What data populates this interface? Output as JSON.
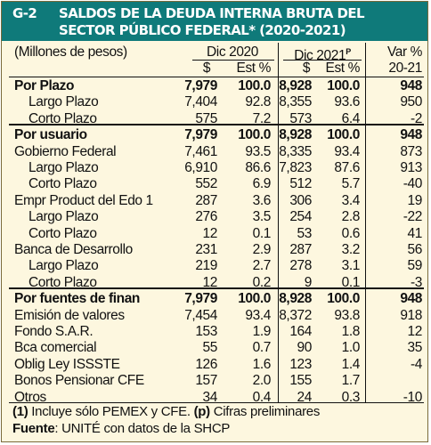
{
  "header": {
    "code": "G-2",
    "title_line1": "SALDOS DE LA DEUDA INTERNA BRUTA DEL",
    "title_line2": "SECTOR PÚBLICO FEDERAL* (2020-2021)"
  },
  "table": {
    "unit_label": "(Millones de pesos)",
    "col_dic2020": "Dic 2020",
    "col_dic2021": "Dic 2021",
    "col_dic2021_sup": "P",
    "col_var": "Var %",
    "sub_dollar_1": "$",
    "sub_est_1": "Est %",
    "sub_dollar_2": "$",
    "sub_est_2": "Est %",
    "sub_var": "20-21",
    "rows": [
      {
        "label": "Por Plazo",
        "v20": "7,979",
        "e20": "100.0",
        "v21": "8,928",
        "e21": "100.0",
        "var": "948"
      },
      {
        "label": "Largo Plazo",
        "v20": "7,404",
        "e20": "92.8",
        "v21": "8,355",
        "e21": "93.6",
        "var": "950"
      },
      {
        "label": "Corto Plazo",
        "v20": "575",
        "e20": "7.2",
        "v21": "573",
        "e21": "6.4",
        "var": "-2"
      },
      {
        "label": "Por usuario",
        "v20": "7,979",
        "e20": "100.0",
        "v21": "8,928",
        "e21": "100.0",
        "var": "948"
      },
      {
        "label": "Gobierno Federal",
        "v20": "7,461",
        "e20": "93.5",
        "v21": "8,335",
        "e21": "93.4",
        "var": "873"
      },
      {
        "label": "Largo Plazo",
        "v20": "6,910",
        "e20": "86.6",
        "v21": "7,823",
        "e21": "87.6",
        "var": "913"
      },
      {
        "label": "Corto Plazo",
        "v20": "552",
        "e20": "6.9",
        "v21": "512",
        "e21": "5.7",
        "var": "-40"
      },
      {
        "label": "Empr Product del Edo 1",
        "v20": "287",
        "e20": "3.6",
        "v21": "306",
        "e21": "3.4",
        "var": "19"
      },
      {
        "label": "Largo Plazo",
        "v20": "276",
        "e20": "3.5",
        "v21": "254",
        "e21": "2.8",
        "var": "-22"
      },
      {
        "label": "Corto Plazo",
        "v20": "12",
        "e20": "0.1",
        "v21": "53",
        "e21": "0.6",
        "var": "41"
      },
      {
        "label": "Banca de Desarrollo",
        "v20": "231",
        "e20": "2.9",
        "v21": "287",
        "e21": "3.2",
        "var": "56"
      },
      {
        "label": "Largo Plazo",
        "v20": "219",
        "e20": "2.7",
        "v21": "278",
        "e21": "3.1",
        "var": "59"
      },
      {
        "label": "Corto Plazo",
        "v20": "12",
        "e20": "0.2",
        "v21": "9",
        "e21": "0.1",
        "var": "-3"
      },
      {
        "label": "Por fuentes de finan",
        "v20": "7,979",
        "e20": "100.0",
        "v21": "8,928",
        "e21": "100.0",
        "var": "948"
      },
      {
        "label": "Emisión de valores",
        "v20": "7,454",
        "e20": "93.4",
        "v21": "8,372",
        "e21": "93.8",
        "var": "918"
      },
      {
        "label": "Fondo S.A.R.",
        "v20": "153",
        "e20": "1.9",
        "v21": "164",
        "e21": "1.8",
        "var": "12"
      },
      {
        "label": "Bca comercial",
        "v20": "55",
        "e20": "0.7",
        "v21": "90",
        "e21": "1.0",
        "var": "35"
      },
      {
        "label": "Oblig Ley ISSSTE",
        "v20": "126",
        "e20": "1.6",
        "v21": "123",
        "e21": "1.4",
        "var": "-4"
      },
      {
        "label": "Bonos Pensionar CFE",
        "v20": "157",
        "e20": "2.0",
        "v21": "155",
        "e21": "1.7",
        "var": ""
      },
      {
        "label": "Otros",
        "v20": "34",
        "e20": "0.4",
        "v21": "24",
        "e21": "0.3",
        "var": "-10"
      }
    ]
  },
  "footnotes": {
    "note1_marker": "(1)",
    "note1_text": " Incluye sólo PEMEX y CFE. ",
    "note2_marker": "(p)",
    "note2_text": " Cifras preliminares",
    "source_label": "Fuente",
    "source_text": ": UNITÉ con datos de la  SHCP"
  }
}
